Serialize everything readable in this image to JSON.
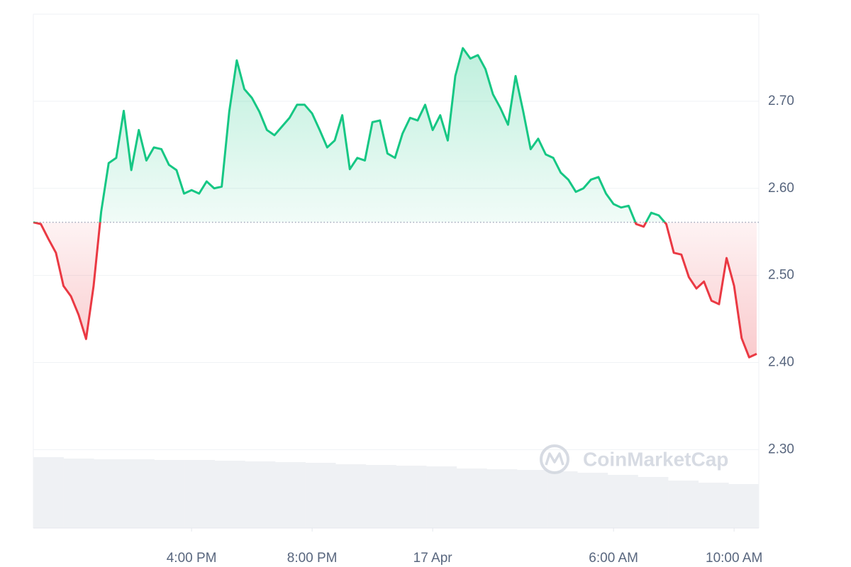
{
  "chart_data": {
    "type": "area",
    "x": [
      10.75,
      11,
      11.25,
      11.5,
      11.75,
      12,
      12.25,
      12.5,
      12.75,
      13,
      13.25,
      13.5,
      13.75,
      14,
      14.25,
      14.5,
      14.75,
      15,
      15.25,
      15.5,
      15.75,
      16,
      16.25,
      16.5,
      16.75,
      17,
      17.25,
      17.5,
      17.75,
      18,
      18.25,
      18.5,
      18.75,
      19,
      19.25,
      19.5,
      19.75,
      20,
      20.25,
      20.5,
      20.75,
      21,
      21.25,
      21.5,
      21.75,
      22,
      22.25,
      22.5,
      22.75,
      23,
      23.25,
      23.5,
      23.75,
      24,
      24.25,
      24.5,
      24.75,
      25,
      25.25,
      25.5,
      25.75,
      26,
      26.25,
      26.5,
      26.75,
      27,
      27.25,
      27.5,
      27.75,
      28,
      28.25,
      28.5,
      28.75,
      29,
      29.25,
      29.5,
      29.75,
      30,
      30.25,
      30.5,
      30.75,
      31,
      31.25,
      31.5,
      31.75,
      32,
      32.25,
      32.5,
      32.75,
      33,
      33.25,
      33.5,
      33.75,
      34,
      34.25,
      34.5,
      34.75
    ],
    "values": [
      2.561,
      2.559,
      2.542,
      2.526,
      2.488,
      2.476,
      2.455,
      2.427,
      2.488,
      2.573,
      2.629,
      2.635,
      2.689,
      2.621,
      2.667,
      2.632,
      2.647,
      2.645,
      2.627,
      2.621,
      2.594,
      2.598,
      2.594,
      2.608,
      2.6,
      2.602,
      2.688,
      2.747,
      2.714,
      2.704,
      2.688,
      2.667,
      2.661,
      2.671,
      2.681,
      2.696,
      2.696,
      2.686,
      2.667,
      2.647,
      2.655,
      2.684,
      2.622,
      2.635,
      2.632,
      2.676,
      2.678,
      2.64,
      2.635,
      2.663,
      2.681,
      2.678,
      2.696,
      2.667,
      2.684,
      2.655,
      2.729,
      2.761,
      2.749,
      2.753,
      2.737,
      2.708,
      2.692,
      2.673,
      2.729,
      2.689,
      2.645,
      2.657,
      2.639,
      2.635,
      2.618,
      2.61,
      2.596,
      2.6,
      2.61,
      2.613,
      2.594,
      2.582,
      2.578,
      2.58,
      2.559,
      2.556,
      2.572,
      2.569,
      2.559,
      2.526,
      2.524,
      2.498,
      2.485,
      2.493,
      2.471,
      2.467,
      2.52,
      2.488,
      2.428,
      2.406,
      2.41
    ],
    "baseline": 2.561,
    "color_up": "#16c784",
    "color_down": "#ea3943",
    "xlim": [
      10.75,
      34.82
    ],
    "ylim": [
      2.21,
      2.8
    ],
    "xticks": [
      {
        "value": 16,
        "label": "4:00 PM"
      },
      {
        "value": 20,
        "label": "8:00 PM"
      },
      {
        "value": 24,
        "label": "17 Apr"
      },
      {
        "value": 30,
        "label": "6:00 AM"
      },
      {
        "value": 34,
        "label": "10:00 AM"
      }
    ],
    "yticks": [
      {
        "value": 2.3,
        "label": "2.30"
      },
      {
        "value": 2.4,
        "label": "2.40"
      },
      {
        "value": 2.5,
        "label": "2.50"
      },
      {
        "value": 2.6,
        "label": "2.60"
      },
      {
        "value": 2.7,
        "label": "2.70"
      }
    ],
    "grid": true,
    "volume": {
      "color": "#eff1f4",
      "values": [
        100,
        98,
        97,
        97,
        96,
        96,
        95,
        94,
        93,
        92,
        90,
        89,
        88,
        87,
        84,
        83,
        82,
        80,
        78,
        75,
        72,
        67,
        64,
        62
      ]
    },
    "vlim": [
      0,
      100
    ],
    "watermark": "CoinMarketCap"
  }
}
